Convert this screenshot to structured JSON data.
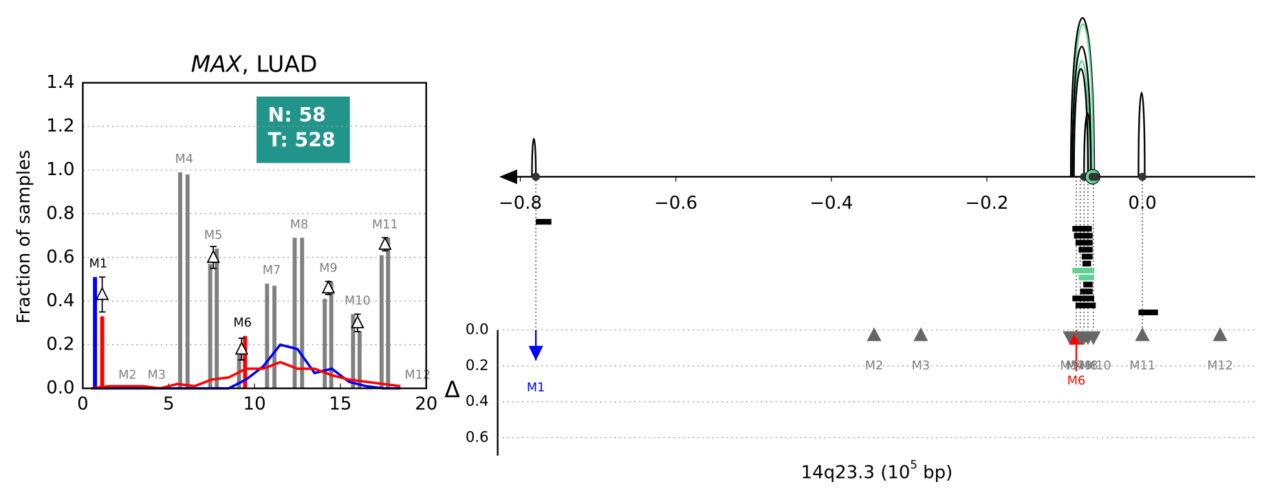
{
  "chart_data": [
    {
      "type": "bar",
      "title": [
        "MAX",
        ", LUAD"
      ],
      "ylabel": "Fraction of samples",
      "annotation": [
        "N: 58",
        "T: 528"
      ],
      "annotation_color": "#21958a",
      "xlim": [
        0,
        20
      ],
      "xticks": [
        0,
        5,
        10,
        15,
        20
      ],
      "ylim": [
        0,
        1.4
      ],
      "yticks": [
        {
          "value": 0,
          "label": "0.0"
        },
        0.2,
        0.4,
        0.6,
        0.8,
        {
          "value": 1,
          "label": "1.0"
        },
        1.2,
        1.4
      ],
      "grid": true,
      "bars": [
        {
          "color": "#808080",
          "x": [
            5.67,
            6.1,
            7.42,
            7.8,
            9.1,
            10.73,
            11.16,
            12.34,
            12.77,
            14.09,
            14.47,
            15.74,
            16.12,
            17.4,
            17.78
          ],
          "values": [
            0.99,
            0.98,
            0.57,
            0.64,
            0.16,
            0.48,
            0.47,
            0.69,
            0.69,
            0.41,
            0.49,
            0.34,
            0.26,
            0.61,
            0.69
          ]
        },
        {
          "color": "#0000ff",
          "x": [
            0.71
          ],
          "values": [
            0.51
          ]
        },
        {
          "color": "#ff0000",
          "x": [
            1.13,
            9.45
          ],
          "values": [
            0.33,
            0.24
          ]
        }
      ],
      "lines": [
        {
          "color": "#0000ff",
          "x": [
            0.5,
            1.5,
            2.5,
            3.5,
            4.5,
            5.5,
            6.5,
            7.5,
            8.5,
            9.5,
            10.5,
            11.5,
            12.5,
            13.5,
            14.5,
            15.5,
            16.5,
            17.5,
            18.5
          ],
          "values": [
            0,
            0,
            0,
            0,
            0,
            0,
            0,
            0,
            0,
            0.04,
            0.1,
            0.2,
            0.18,
            0.07,
            0.09,
            0.03,
            0.01,
            0,
            0
          ]
        },
        {
          "color": "#ff0000",
          "x": [
            0.5,
            1.5,
            2.5,
            3.5,
            4.5,
            5.5,
            6.5,
            7.5,
            8.5,
            9.5,
            10.5,
            11.5,
            12.5,
            13.5,
            14.5,
            15.5,
            16.5,
            17.5,
            18.5
          ],
          "values": [
            0,
            0.01,
            0.01,
            0.01,
            0,
            0.02,
            0.01,
            0.04,
            0.05,
            0.09,
            0.09,
            0.12,
            0.09,
            0.09,
            0.06,
            0.04,
            0.03,
            0.02,
            0.01
          ]
        }
      ],
      "deltas": {
        "x": [
          1.13,
          7.6,
          9.25,
          14.3,
          16.0,
          17.6
        ],
        "values": [
          0.43,
          0.6,
          0.18,
          0.46,
          0.3,
          0.66
        ],
        "errors": [
          0.08,
          0.05,
          0.05,
          0.03,
          0.04,
          0.03
        ]
      },
      "motifs": {
        "labels": [
          "M1",
          "M2",
          "M3",
          "M4",
          "M5",
          "M6",
          "M7",
          "M8",
          "M9",
          "M10",
          "M11",
          "M12"
        ],
        "x": [
          0.9,
          2.6,
          4.3,
          5.9,
          7.6,
          9.3,
          11.0,
          12.6,
          14.3,
          16.0,
          17.6,
          19.5
        ],
        "colors": [
          "#000000",
          "#808080",
          "#808080",
          "#808080",
          "#808080",
          "#000000",
          "#808080",
          "#808080",
          "#808080",
          "#808080",
          "#808080",
          "#808080"
        ]
      }
    },
    {
      "type": "track",
      "xlabel": [
        "14q23.3 (10",
        "5",
        " bp)"
      ],
      "xlim": [
        -0.827,
        0.145
      ],
      "xticks": [
        {
          "value": -0.8,
          "label": "−0.8"
        },
        {
          "value": -0.6,
          "label": "−0.6"
        },
        {
          "value": -0.4,
          "label": "−0.4"
        },
        {
          "value": -0.2,
          "label": "−0.2"
        },
        {
          "value": 0,
          "label": "0.0"
        }
      ],
      "ylabel": "Δ",
      "ylim": [
        0,
        0.7
      ],
      "yticks": [
        {
          "value": 0,
          "label": "0.0"
        },
        0.2,
        0.4,
        0.6
      ],
      "grid": true,
      "arcs": {
        "start": [
          -0.785,
          -0.092,
          -0.09,
          -0.09,
          -0.088,
          -0.088,
          -0.075,
          -0.005
        ],
        "end": [
          -0.78,
          -0.062,
          -0.063,
          -0.066,
          -0.068,
          -0.07,
          -0.066,
          0.003
        ],
        "heights": [
          0.24,
          1.0,
          0.96,
          0.82,
          0.73,
          0.68,
          0.4,
          0.53
        ],
        "colors": [
          "#000000",
          "#000000",
          "#60d394",
          "#000000",
          "#60d394",
          "#000000",
          "#000000",
          "#000000"
        ]
      },
      "dots": {
        "x": [
          -0.78,
          -0.075,
          -0.064,
          -0.06,
          0.0
        ],
        "highlight": 2,
        "highlight_color": "#60d394"
      },
      "segments": {
        "start": [
          -0.78,
          -0.09,
          -0.088,
          -0.086,
          -0.082,
          -0.078,
          -0.077,
          -0.09,
          -0.082,
          -0.076,
          -0.08,
          -0.09,
          -0.086,
          -0.005
        ],
        "end": [
          -0.76,
          -0.065,
          -0.064,
          -0.064,
          -0.064,
          -0.064,
          -0.066,
          -0.062,
          -0.062,
          -0.064,
          -0.064,
          -0.062,
          -0.06,
          0.02
        ],
        "colors": [
          "#000000",
          "#000000",
          "#000000",
          "#000000",
          "#000000",
          "#000000",
          "#000000",
          "#60d394",
          "#60d394",
          "#000000",
          "#000000",
          "#000000",
          "#000000",
          "#000000"
        ]
      },
      "markers": {
        "labels": [
          "M1",
          "M2",
          "M3",
          "M4",
          "M5",
          "M6",
          "M7",
          "M8",
          "M9",
          "M10",
          "M11",
          "M12"
        ],
        "x": [
          -0.78,
          -0.345,
          -0.285,
          -0.093,
          -0.088,
          -0.085,
          -0.08,
          -0.075,
          -0.07,
          -0.063,
          0.0,
          0.1
        ],
        "values": [
          0.17,
          null,
          null,
          null,
          null,
          0.23,
          null,
          null,
          null,
          null,
          null,
          null
        ],
        "shapes": [
          "down-arrow",
          "up",
          "up",
          "down",
          "down",
          "up-arrow",
          "down",
          "down",
          "down",
          "down",
          "up",
          "up"
        ],
        "colors": [
          "#0000ff",
          "#666666",
          "#666666",
          "#666666",
          "#666666",
          "#ff0000",
          "#666666",
          "#666666",
          "#666666",
          "#666666",
          "#666666",
          "#666666"
        ]
      }
    }
  ]
}
